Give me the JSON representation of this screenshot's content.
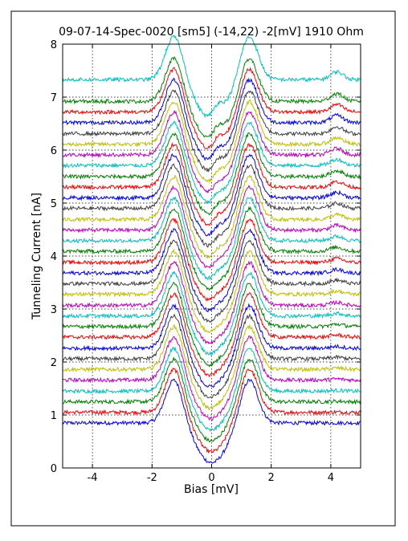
{
  "chart_data": {
    "type": "line",
    "title": "09-07-14-Spec-0020 [sm5] (-14,22) -2[mV] 1910 Ohm",
    "xlabel": "Bias [mV]",
    "ylabel": "Tunneling Current [nA]",
    "xlim": [
      -5,
      5
    ],
    "ylim": [
      0,
      8
    ],
    "xticks": [
      -4,
      -2,
      0,
      2,
      4
    ],
    "yticks": [
      0,
      1,
      2,
      3,
      4,
      5,
      6,
      7,
      8
    ],
    "grid": "dotted",
    "legend": "none",
    "series_count": 32,
    "series_offsets": [
      0.85,
      1.05,
      1.25,
      1.45,
      1.66,
      1.86,
      2.06,
      2.26,
      2.47,
      2.67,
      2.87,
      3.07,
      3.28,
      3.48,
      3.68,
      3.88,
      4.09,
      4.29,
      4.49,
      4.69,
      4.9,
      5.1,
      5.3,
      5.5,
      5.71,
      5.91,
      6.11,
      6.31,
      6.52,
      6.72,
      6.92,
      7.33
    ],
    "colors": [
      "#0000ff",
      "#ff0000",
      "#008000",
      "#00bfbf",
      "#bf00bf",
      "#bfbf00",
      "#404040"
    ],
    "peak_positions": [
      -1.25,
      1.25
    ],
    "peak_height": 0.85,
    "gap_center_depth": 0.75
  }
}
